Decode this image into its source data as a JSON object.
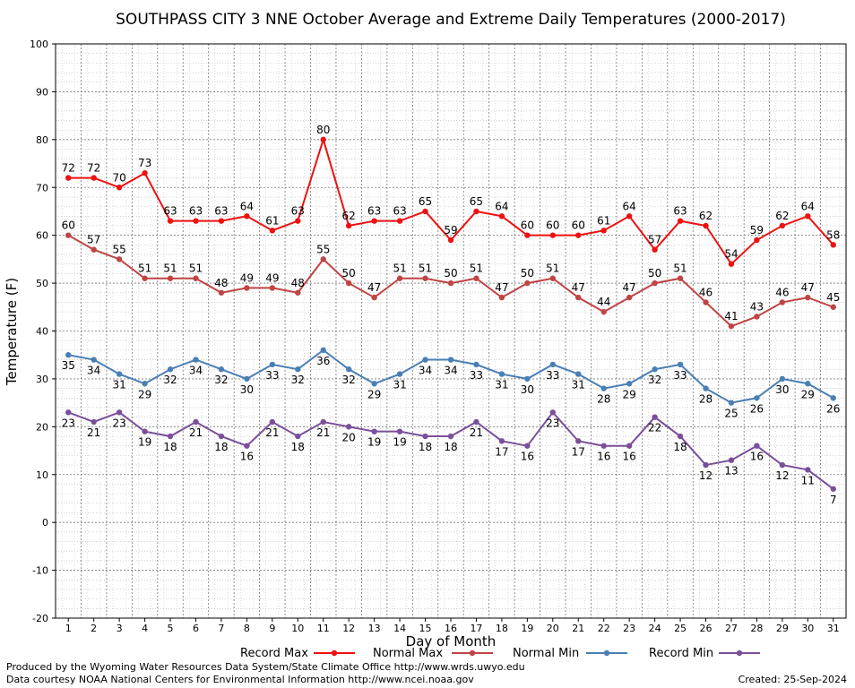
{
  "chart_data": {
    "type": "line",
    "title": "SOUTHPASS CITY 3 NNE October Average and Extreme Daily Temperatures (2000-2017)",
    "xlabel": "Day of Month",
    "ylabel": "Temperature (F)",
    "ylim": [
      -20,
      100
    ],
    "yticks": [
      -20,
      -10,
      0,
      10,
      20,
      30,
      40,
      50,
      60,
      70,
      80,
      90,
      100
    ],
    "x": [
      1,
      2,
      3,
      4,
      5,
      6,
      7,
      8,
      9,
      10,
      11,
      12,
      13,
      14,
      15,
      16,
      17,
      18,
      19,
      20,
      21,
      22,
      23,
      24,
      25,
      26,
      27,
      28,
      29,
      30,
      31
    ],
    "grid": true,
    "legend_position": "bottom",
    "series": [
      {
        "name": "Record Max",
        "color": "#ee1111",
        "values": [
          72,
          72,
          70,
          73,
          63,
          63,
          63,
          64,
          61,
          63,
          80,
          62,
          63,
          63,
          65,
          59,
          65,
          64,
          60,
          60,
          60,
          61,
          64,
          57,
          63,
          62,
          54,
          59,
          62,
          64,
          58
        ]
      },
      {
        "name": "Normal Max",
        "color": "#c04444",
        "values": [
          60,
          57,
          55,
          51,
          51,
          51,
          48,
          49,
          49,
          48,
          55,
          50,
          47,
          51,
          51,
          50,
          51,
          47,
          50,
          51,
          47,
          44,
          47,
          50,
          51,
          46,
          41,
          43,
          46,
          47,
          45
        ]
      },
      {
        "name": "Normal Min",
        "color": "#4a7fb5",
        "values": [
          35,
          34,
          31,
          29,
          32,
          34,
          32,
          30,
          33,
          32,
          36,
          32,
          29,
          31,
          34,
          34,
          33,
          31,
          30,
          33,
          31,
          28,
          29,
          32,
          33,
          28,
          25,
          26,
          30,
          29,
          26
        ]
      },
      {
        "name": "Record Min",
        "color": "#7a4f9a",
        "values": [
          23,
          21,
          23,
          19,
          18,
          21,
          18,
          16,
          21,
          18,
          21,
          20,
          19,
          19,
          18,
          18,
          21,
          17,
          16,
          23,
          17,
          16,
          16,
          22,
          18,
          12,
          13,
          16,
          12,
          11,
          7
        ]
      }
    ]
  },
  "footer": {
    "produced_by": "Produced by the Wyoming Water Resources Data System/State Climate Office http://www.wrds.uwyo.edu",
    "courtesy": "Data courtesy NOAA National Centers for Environmental Information http://www.ncei.noaa.gov",
    "created": "Created:  25-Sep-2024"
  }
}
